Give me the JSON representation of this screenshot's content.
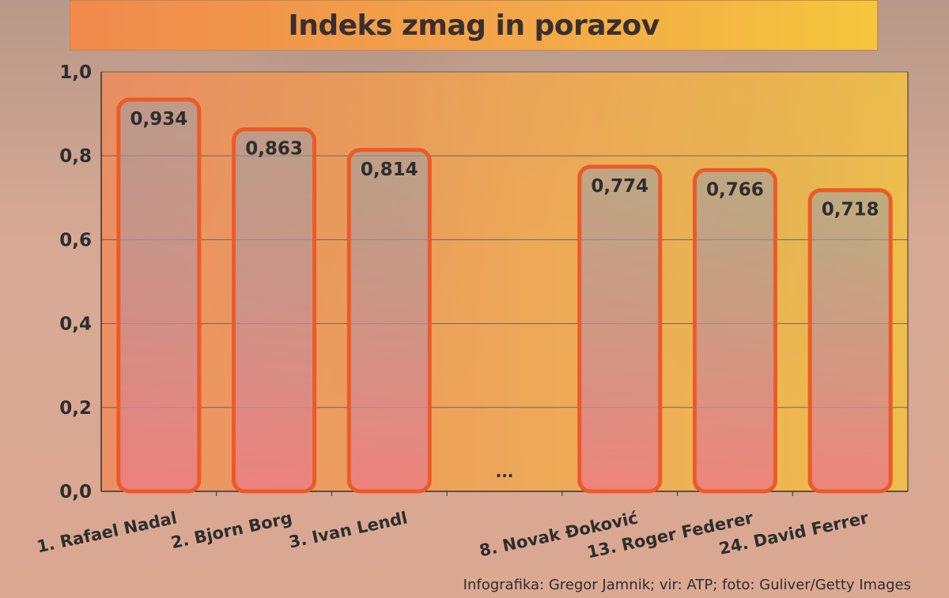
{
  "title": "Indeks zmag in porazov",
  "credit": "Infografika: Gregor Jamnik; vir: ATP; foto: Guliver/Getty Images",
  "colors": {
    "plot_left": "#ef8a5a",
    "plot_right": "#f4c23e",
    "bar_outline": "#ec5a28",
    "bar_top": "#9aa0a8",
    "bar_bottom": "#ee7f80",
    "value_label": "#2e2e2e",
    "grid": "#555555"
  },
  "chart_data": {
    "type": "bar",
    "categories": [
      "1. Rafael Nadal",
      "2. Bjorn Borg",
      "3. Ivan Lendl",
      "",
      "8. Novak Đoković",
      "13. Roger Federer",
      "24. David Ferrer"
    ],
    "values": [
      0.934,
      0.863,
      0.814,
      null,
      0.774,
      0.766,
      0.718
    ],
    "value_labels": [
      "0,934",
      "0,863",
      "0,814",
      "",
      "0,774",
      "0,766",
      "0,718"
    ],
    "gap_label": "...",
    "ylim": [
      0,
      1.0
    ],
    "yticks": [
      0.0,
      0.2,
      0.4,
      0.6,
      0.8,
      1.0
    ],
    "ytick_labels": [
      "0,0",
      "0,2",
      "0,4",
      "0,6",
      "0,8",
      "1,0"
    ],
    "grid": true,
    "xlabel": "",
    "ylabel": ""
  }
}
